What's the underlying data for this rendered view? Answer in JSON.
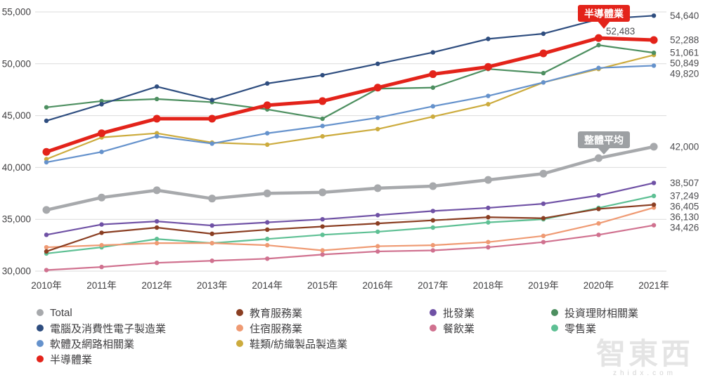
{
  "annotations": {
    "semiconductor_badge": "半導體業",
    "semiconductor_peak_label": "52,483",
    "average_badge": "整體平均"
  },
  "watermark": {
    "logo": "智東西",
    "domain": "zhidx.com"
  },
  "chart_data": {
    "type": "line",
    "title": "",
    "xlabel": "",
    "ylabel": "",
    "x": [
      "2010年",
      "2011年",
      "2012年",
      "2013年",
      "2014年",
      "2015年",
      "2016年",
      "2017年",
      "2018年",
      "2019年",
      "2020年",
      "2021年"
    ],
    "ylim": [
      30000,
      55000
    ],
    "ytick_step": 5000,
    "yticks": [
      30000,
      35000,
      40000,
      45000,
      50000,
      55000
    ],
    "ytick_labels": [
      "30,000",
      "35,000",
      "40,000",
      "45,000",
      "50,000",
      "55,000"
    ],
    "grid": true,
    "legend_position": "bottom",
    "colors": {
      "axis_text": "#414042",
      "grid_line": "#dcdcdc",
      "end_label_text": "#4d4d50",
      "semiconductor_accent": "#e3231a",
      "average_badge_gray": "#9da0a3"
    },
    "series": [
      {
        "name": "零售業",
        "color": "#5ec094",
        "values": [
          31700,
          32300,
          33100,
          32700,
          33100,
          33500,
          33800,
          34200,
          34700,
          35000,
          36100,
          37249
        ],
        "end_label": "37,249"
      },
      {
        "name": "餐飲業",
        "color": "#d0718f",
        "values": [
          30100,
          30400,
          30800,
          31000,
          31200,
          31600,
          31900,
          32000,
          32300,
          32800,
          33500,
          34426
        ],
        "end_label": "34,426"
      },
      {
        "name": "住宿服務業",
        "color": "#ef9a73",
        "values": [
          32300,
          32500,
          32700,
          32700,
          32500,
          32000,
          32400,
          32500,
          32800,
          33400,
          34600,
          36130
        ],
        "end_label": "36,130"
      },
      {
        "name": "教育服務業",
        "color": "#8a3e22",
        "values": [
          31900,
          33700,
          34200,
          33600,
          34000,
          34300,
          34600,
          34900,
          35200,
          35100,
          36000,
          36405
        ],
        "end_label": "36,405"
      },
      {
        "name": "批發業",
        "color": "#6f51a5",
        "values": [
          33500,
          34500,
          34800,
          34400,
          34700,
          35000,
          35400,
          35800,
          36100,
          36500,
          37300,
          38507
        ],
        "end_label": "38,507"
      },
      {
        "name": "鞋類/紡織製品製造業",
        "color": "#ccab3d",
        "values": [
          40800,
          42900,
          43300,
          42400,
          42200,
          43000,
          43700,
          44900,
          46100,
          48200,
          49500,
          50849
        ],
        "end_label": "50,849"
      },
      {
        "name": "軟體及網路相關業",
        "color": "#6592cc",
        "values": [
          40500,
          41500,
          43000,
          42300,
          43300,
          44000,
          44800,
          45900,
          46900,
          48200,
          49600,
          49820
        ],
        "end_label": "49,820"
      },
      {
        "name": "投資理財相關業",
        "color": "#4d8f60",
        "values": [
          45800,
          46400,
          46600,
          46300,
          45600,
          44700,
          47600,
          47700,
          49500,
          49100,
          51800,
          51061
        ],
        "end_label": "51,061"
      },
      {
        "name": "電腦及消費性電子製造業",
        "color": "#2e4d7f",
        "values": [
          44500,
          46100,
          47800,
          46500,
          48100,
          48900,
          50000,
          51100,
          52400,
          52900,
          54300,
          54640
        ],
        "end_label": "54,640"
      },
      {
        "name": "Total",
        "color": "#a7a9ac",
        "line_width": 4.5,
        "dot_radius": 5.5,
        "values": [
          35900,
          37100,
          37800,
          37000,
          37500,
          37600,
          38000,
          38200,
          38800,
          39400,
          40900,
          42000
        ],
        "end_label": "42,000"
      },
      {
        "name": "半導體業",
        "color": "#e3231a",
        "line_width": 5,
        "dot_radius": 5.5,
        "values": [
          41500,
          43300,
          44700,
          44700,
          46000,
          46400,
          47700,
          49000,
          49700,
          51000,
          52483,
          52288
        ],
        "end_label": "52,288"
      }
    ],
    "legend_columns": [
      [
        "Total",
        "電腦及消費性電子製造業",
        "軟體及網路相關業",
        "半導體業"
      ],
      [
        "教育服務業",
        "住宿服務業",
        "鞋類/紡織製品製造業"
      ],
      [
        "批發業",
        "餐飲業"
      ],
      [
        "投資理財相關業",
        "零售業"
      ]
    ]
  }
}
